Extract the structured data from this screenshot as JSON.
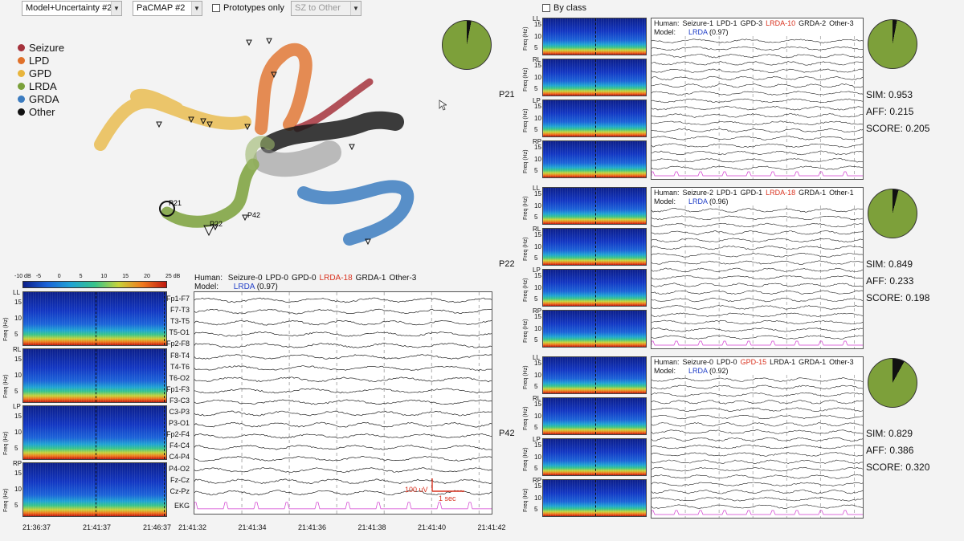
{
  "toolbar": {
    "model_select": "Model+Uncertainty #2",
    "map_select": "PaCMAP #2",
    "prototypes_only": "Prototypes only",
    "sz_select": "SZ to Other",
    "by_class": "By class"
  },
  "legend": [
    {
      "label": "Seizure",
      "color": "#a5323c"
    },
    {
      "label": "LPD",
      "color": "#e0712a"
    },
    {
      "label": "GPD",
      "color": "#e8b53c"
    },
    {
      "label": "LRDA",
      "color": "#7aa03a"
    },
    {
      "label": "GRDA",
      "color": "#3c7cc0"
    },
    {
      "label": "Other",
      "color": "#111111"
    }
  ],
  "map_points": {
    "p21": "P21",
    "p22": "P22",
    "p42": "P42"
  },
  "colorbar": {
    "ticks": [
      "-10 dB",
      "-5",
      "0",
      "5",
      "10",
      "15",
      "20",
      "25 dB"
    ]
  },
  "main": {
    "human_label": "Human:",
    "votes": [
      {
        "text": "Seizure-0",
        "hl": false
      },
      {
        "text": "LPD-0",
        "hl": false
      },
      {
        "text": "GPD-0",
        "hl": false
      },
      {
        "text": "LRDA-18",
        "hl": true
      },
      {
        "text": "GRDA-1",
        "hl": false
      },
      {
        "text": "Other-3",
        "hl": false
      }
    ],
    "model_label": "Model:",
    "model_class": "LRDA",
    "model_conf": "(0.97)",
    "spec_regions": [
      "LL",
      "RL",
      "LP",
      "RP"
    ],
    "freq_label": "Freq (Hz)",
    "freq_ticks": [
      "15",
      "10",
      "5"
    ],
    "spec_time_ticks": [
      "21:36:37",
      "21:41:37",
      "21:46:37"
    ],
    "eeg_time_ticks": [
      "21:41:32",
      "21:41:34",
      "21:41:36",
      "21:41:38",
      "21:41:40",
      "21:41:42"
    ],
    "channels": [
      "Fp1-F7",
      "F7-T3",
      "T3-T5",
      "T5-O1",
      "Fp2-F8",
      "F8-T4",
      "T4-T6",
      "T6-O2",
      "Fp1-F3",
      "F3-C3",
      "C3-P3",
      "P3-O1",
      "Fp2-F4",
      "F4-C4",
      "C4-P4",
      "P4-O2",
      "Fz-Cz",
      "Cz-Pz",
      "EKG"
    ],
    "scale_uv": "100 uV",
    "scale_sec": "1 sec"
  },
  "prototypes": [
    {
      "id": "P21",
      "votes": [
        {
          "text": "Seizure-1",
          "hl": false
        },
        {
          "text": "LPD-1",
          "hl": false
        },
        {
          "text": "GPD-3",
          "hl": false
        },
        {
          "text": "LRDA-10",
          "hl": true
        },
        {
          "text": "GRDA-2",
          "hl": false
        },
        {
          "text": "Other-3",
          "hl": false
        }
      ],
      "model_class": "LRDA",
      "model_conf": "(0.97)",
      "sim": "SIM: 0.953",
      "aff": "AFF: 0.215",
      "score": "SCORE: 0.205",
      "pie": {
        "lrda_frac": 0.97
      }
    },
    {
      "id": "P22",
      "votes": [
        {
          "text": "Seizure-2",
          "hl": false
        },
        {
          "text": "LPD-1",
          "hl": false
        },
        {
          "text": "GPD-1",
          "hl": false
        },
        {
          "text": "LRDA-18",
          "hl": true
        },
        {
          "text": "GRDA-1",
          "hl": false
        },
        {
          "text": "Other-1",
          "hl": false
        }
      ],
      "model_class": "LRDA",
      "model_conf": "(0.96)",
      "sim": "SIM: 0.849",
      "aff": "AFF: 0.233",
      "score": "SCORE: 0.198",
      "pie": {
        "lrda_frac": 0.96
      }
    },
    {
      "id": "P42",
      "votes": [
        {
          "text": "Seizure-0",
          "hl": false
        },
        {
          "text": "LPD-0",
          "hl": false
        },
        {
          "text": "GPD-15",
          "hl": true
        },
        {
          "text": "LRDA-1",
          "hl": false
        },
        {
          "text": "GRDA-1",
          "hl": false
        },
        {
          "text": "Other-3",
          "hl": false
        }
      ],
      "model_class": "LRDA",
      "model_conf": "(0.92)",
      "sim": "SIM: 0.829",
      "aff": "AFF: 0.386",
      "score": "SCORE: 0.320",
      "pie": {
        "lrda_frac": 0.92
      }
    }
  ],
  "colors": {
    "highlight": "#d9321f",
    "model": "#2340c8",
    "lrda": "#7da03a",
    "ekg": "#d23fd0",
    "scale": "#d9321f"
  }
}
